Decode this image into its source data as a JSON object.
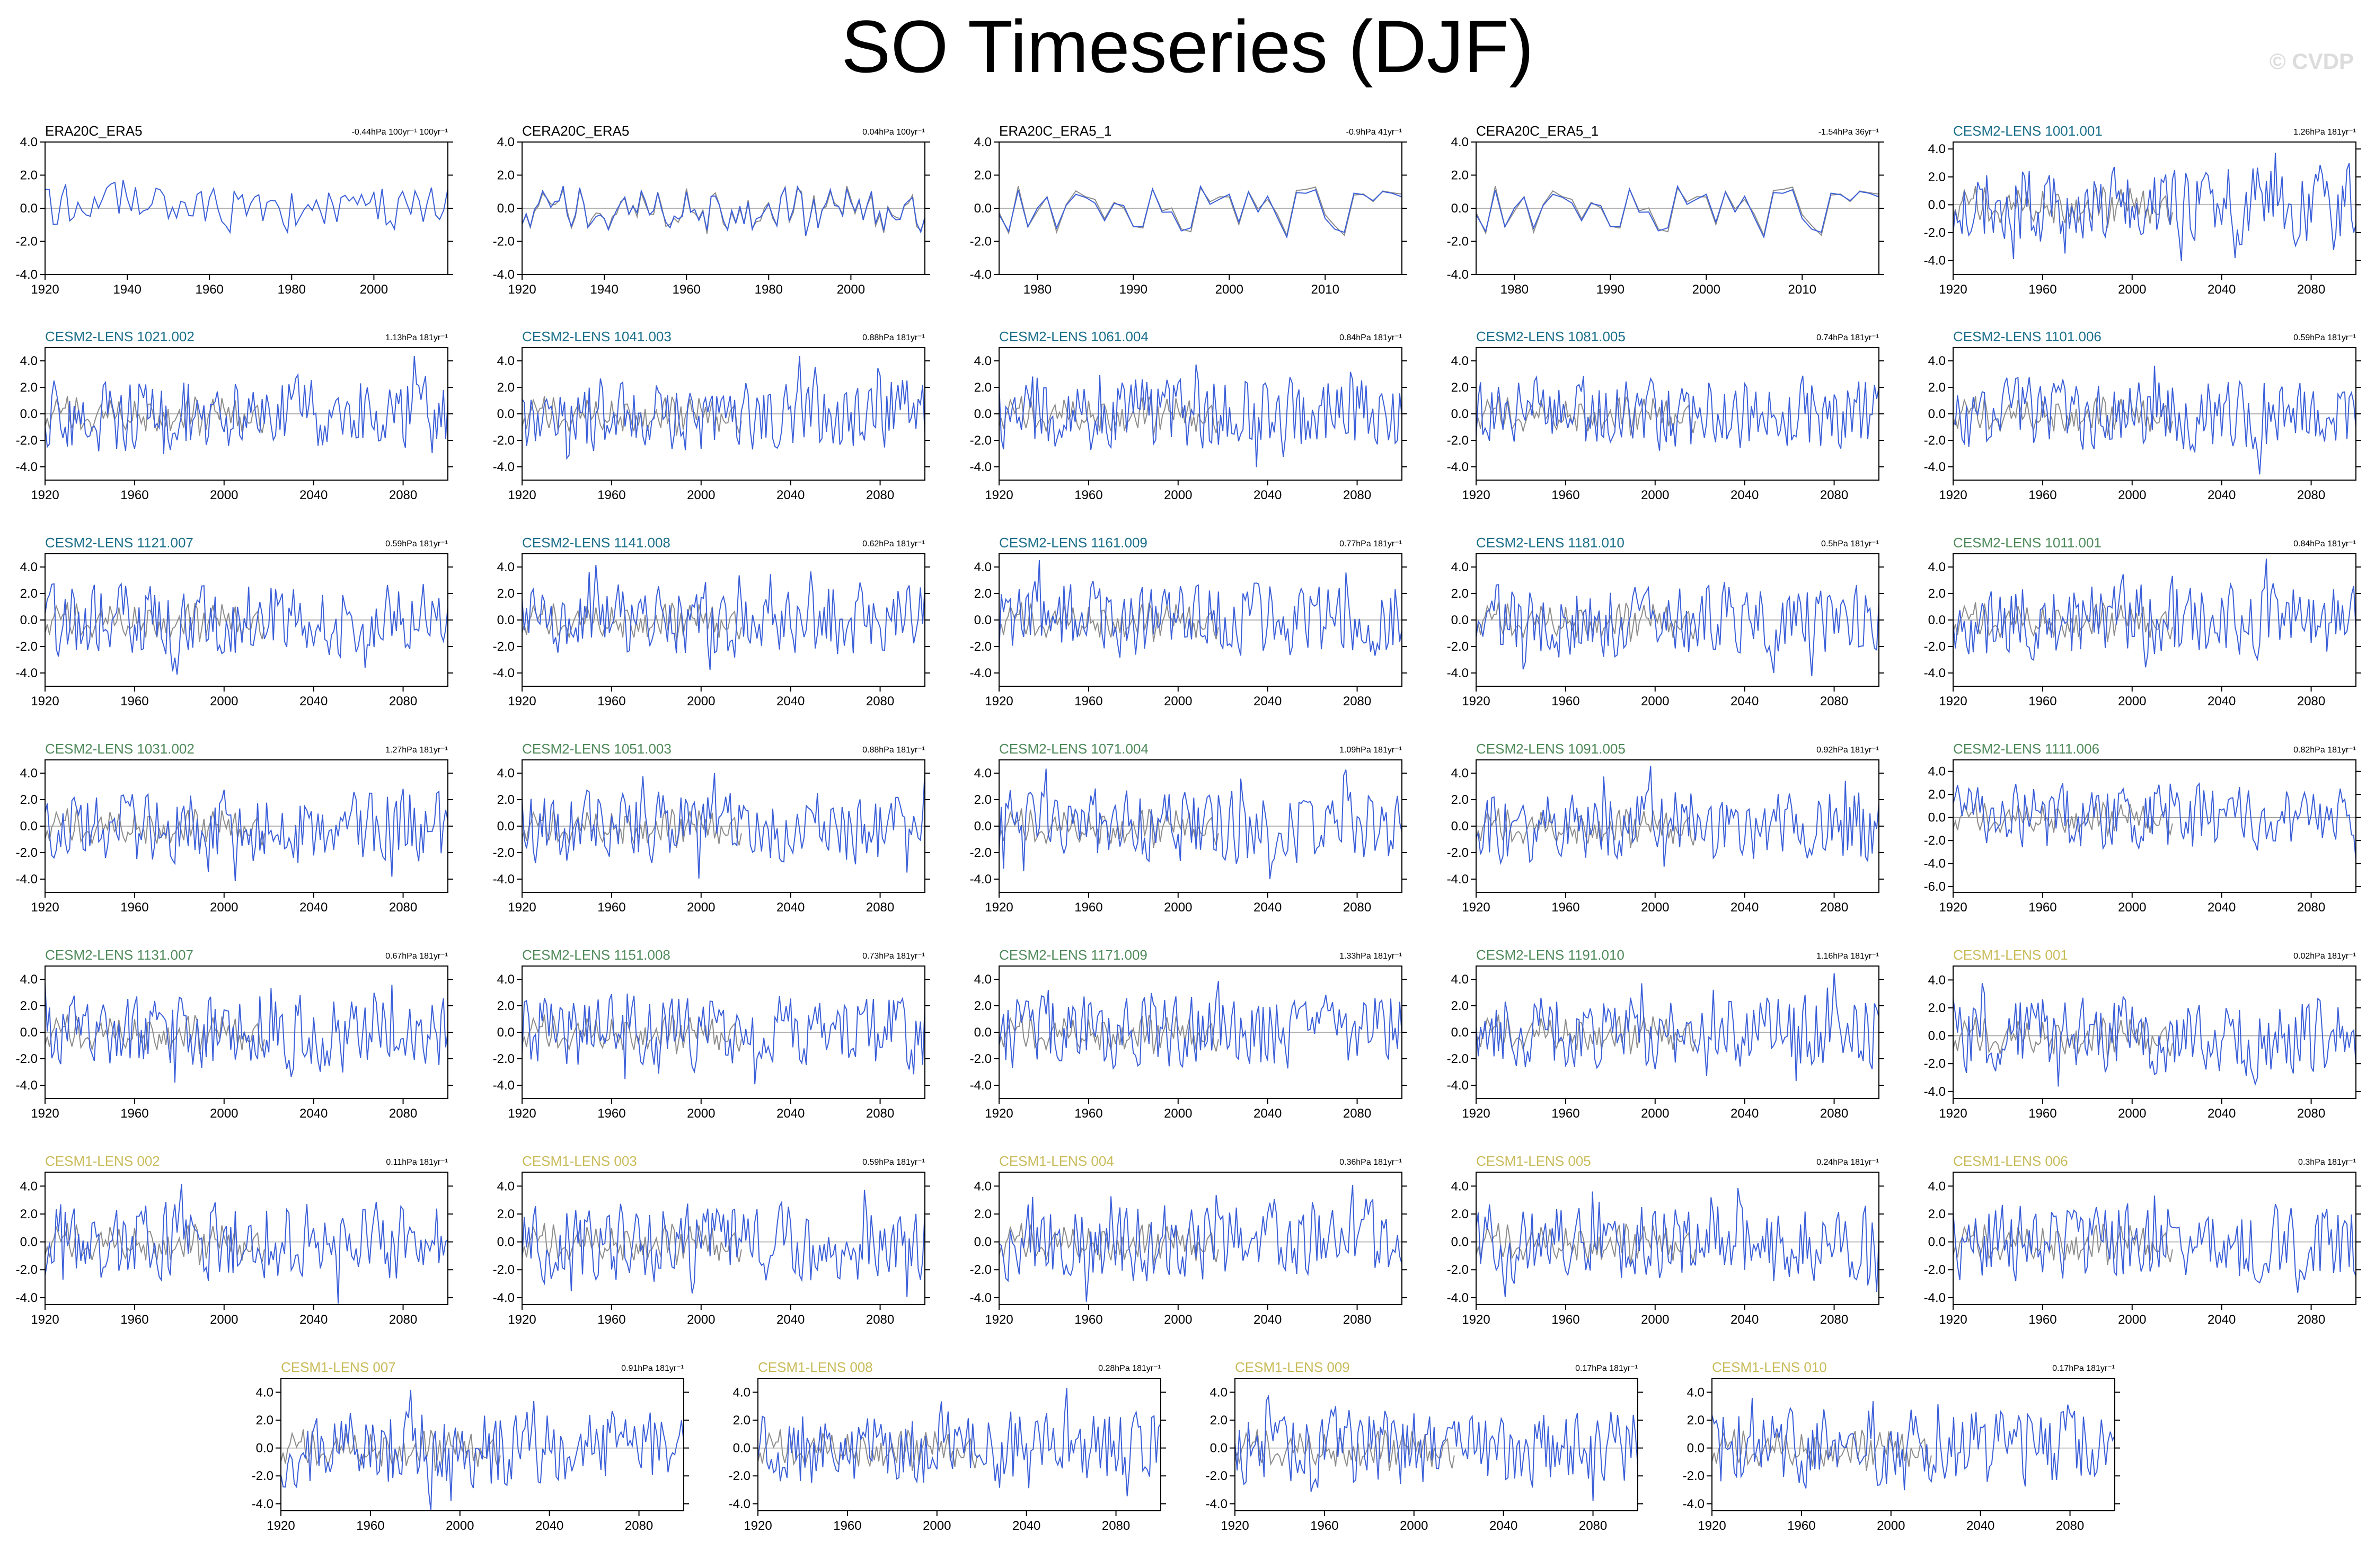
{
  "title": "SO Timeseries (DJF)",
  "watermark": "© CVDP",
  "colors": {
    "obs_line": "#8c8c8c",
    "model_line": "#3b5fd9",
    "zero_line": "#999999",
    "title_obs": "#000000",
    "title_cesm2_blue": "#1a6e8a",
    "title_cesm2_green": "#4f8a5a",
    "title_cesm1": "#c9bb5a"
  },
  "chart_data": [
    {
      "type": "line",
      "name": "ERA20C_ERA5",
      "trend": "-0.44hPa 100yr⁻¹ 100yr⁻¹",
      "title_color": "#000000",
      "x_range": [
        1920,
        2018
      ],
      "ylim": [
        -4,
        4
      ],
      "yticks": [
        "4.0",
        "2.0",
        "0.0",
        "-2.0",
        "-4.0"
      ],
      "xticks": [
        "1920",
        "1940",
        "1960",
        "1980",
        "2000"
      ],
      "obs_overlay": false,
      "seed": 11
    },
    {
      "type": "line",
      "name": "CERA20C_ERA5",
      "trend": "0.04hPa 100yr⁻¹",
      "title_color": "#000000",
      "x_range": [
        1920,
        2018
      ],
      "ylim": [
        -4,
        4
      ],
      "yticks": [
        "4.0",
        "2.0",
        "0.0",
        "-2.0",
        "-4.0"
      ],
      "xticks": [
        "1920",
        "1940",
        "1960",
        "1980",
        "2000"
      ],
      "obs_overlay": true,
      "seed": 12
    },
    {
      "type": "line",
      "name": "ERA20C_ERA5_1",
      "trend": "-0.9hPa 41yr⁻¹",
      "title_color": "#000000",
      "x_range": [
        1976,
        2018
      ],
      "ylim": [
        -4,
        4
      ],
      "yticks": [
        "4.0",
        "2.0",
        "0.0",
        "-2.0",
        "-4.0"
      ],
      "xticks": [
        "1980",
        "1990",
        "2000",
        "2010"
      ],
      "obs_overlay": true,
      "seed": 13
    },
    {
      "type": "line",
      "name": "CERA20C_ERA5_1",
      "trend": "-1.54hPa 36yr⁻¹",
      "title_color": "#000000",
      "x_range": [
        1976,
        2018
      ],
      "ylim": [
        -4,
        4
      ],
      "yticks": [
        "4.0",
        "2.0",
        "0.0",
        "-2.0",
        "-4.0"
      ],
      "xticks": [
        "1980",
        "1990",
        "2000",
        "2010"
      ],
      "obs_overlay": true,
      "seed": 13
    },
    {
      "type": "line",
      "name": "CESM2-LENS 1001.001",
      "trend": "1.26hPa 181yr⁻¹",
      "title_color": "#1a6e8a",
      "x_range": [
        1920,
        2100
      ],
      "ylim": [
        -5,
        4.5
      ],
      "yticks": [
        "4.0",
        "2.0",
        "0.0",
        "-2.0",
        "-4.0"
      ],
      "xticks": [
        "1920",
        "1960",
        "2000",
        "2040",
        "2080"
      ],
      "obs_overlay": true,
      "seed": 21
    },
    {
      "type": "line",
      "name": "CESM2-LENS 1021.002",
      "trend": "1.13hPa 181yr⁻¹",
      "title_color": "#1a6e8a",
      "x_range": [
        1920,
        2100
      ],
      "ylim": [
        -5,
        5
      ],
      "yticks": [
        "4.0",
        "2.0",
        "0.0",
        "-2.0",
        "-4.0"
      ],
      "xticks": [
        "1920",
        "1960",
        "2000",
        "2040",
        "2080"
      ],
      "obs_overlay": true,
      "seed": 22
    },
    {
      "type": "line",
      "name": "CESM2-LENS 1041.003",
      "trend": "0.88hPa 181yr⁻¹",
      "title_color": "#1a6e8a",
      "x_range": [
        1920,
        2100
      ],
      "ylim": [
        -5,
        5
      ],
      "yticks": [
        "4.0",
        "2.0",
        "0.0",
        "-2.0",
        "-4.0"
      ],
      "xticks": [
        "1920",
        "1960",
        "2000",
        "2040",
        "2080"
      ],
      "obs_overlay": true,
      "seed": 23
    },
    {
      "type": "line",
      "name": "CESM2-LENS 1061.004",
      "trend": "0.84hPa 181yr⁻¹",
      "title_color": "#1a6e8a",
      "x_range": [
        1920,
        2100
      ],
      "ylim": [
        -5,
        5
      ],
      "yticks": [
        "4.0",
        "2.0",
        "0.0",
        "-2.0",
        "-4.0"
      ],
      "xticks": [
        "1920",
        "1960",
        "2000",
        "2040",
        "2080"
      ],
      "obs_overlay": true,
      "seed": 24
    },
    {
      "type": "line",
      "name": "CESM2-LENS 1081.005",
      "trend": "0.74hPa 181yr⁻¹",
      "title_color": "#1a6e8a",
      "x_range": [
        1920,
        2100
      ],
      "ylim": [
        -5,
        5
      ],
      "yticks": [
        "4.0",
        "2.0",
        "0.0",
        "-2.0",
        "-4.0"
      ],
      "xticks": [
        "1920",
        "1960",
        "2000",
        "2040",
        "2080"
      ],
      "obs_overlay": true,
      "seed": 25
    },
    {
      "type": "line",
      "name": "CESM2-LENS 1101.006",
      "trend": "0.59hPa 181yr⁻¹",
      "title_color": "#1a6e8a",
      "x_range": [
        1920,
        2100
      ],
      "ylim": [
        -5,
        5
      ],
      "yticks": [
        "4.0",
        "2.0",
        "0.0",
        "-2.0",
        "-4.0"
      ],
      "xticks": [
        "1920",
        "1960",
        "2000",
        "2040",
        "2080"
      ],
      "obs_overlay": true,
      "seed": 26
    },
    {
      "type": "line",
      "name": "CESM2-LENS 1121.007",
      "trend": "0.59hPa 181yr⁻¹",
      "title_color": "#1a6e8a",
      "x_range": [
        1920,
        2100
      ],
      "ylim": [
        -5,
        5
      ],
      "yticks": [
        "4.0",
        "2.0",
        "0.0",
        "-2.0",
        "-4.0"
      ],
      "xticks": [
        "1920",
        "1960",
        "2000",
        "2040",
        "2080"
      ],
      "obs_overlay": true,
      "seed": 27
    },
    {
      "type": "line",
      "name": "CESM2-LENS 1141.008",
      "trend": "0.62hPa 181yr⁻¹",
      "title_color": "#1a6e8a",
      "x_range": [
        1920,
        2100
      ],
      "ylim": [
        -5,
        5
      ],
      "yticks": [
        "4.0",
        "2.0",
        "0.0",
        "-2.0",
        "-4.0"
      ],
      "xticks": [
        "1920",
        "1960",
        "2000",
        "2040",
        "2080"
      ],
      "obs_overlay": true,
      "seed": 28
    },
    {
      "type": "line",
      "name": "CESM2-LENS 1161.009",
      "trend": "0.77hPa 181yr⁻¹",
      "title_color": "#1a6e8a",
      "x_range": [
        1920,
        2100
      ],
      "ylim": [
        -5,
        5
      ],
      "yticks": [
        "4.0",
        "2.0",
        "0.0",
        "-2.0",
        "-4.0"
      ],
      "xticks": [
        "1920",
        "1960",
        "2000",
        "2040",
        "2080"
      ],
      "obs_overlay": true,
      "seed": 29
    },
    {
      "type": "line",
      "name": "CESM2-LENS 1181.010",
      "trend": "0.5hPa 181yr⁻¹",
      "title_color": "#1a6e8a",
      "x_range": [
        1920,
        2100
      ],
      "ylim": [
        -5,
        5
      ],
      "yticks": [
        "4.0",
        "2.0",
        "0.0",
        "-2.0",
        "-4.0"
      ],
      "xticks": [
        "1920",
        "1960",
        "2000",
        "2040",
        "2080"
      ],
      "obs_overlay": true,
      "seed": 30
    },
    {
      "type": "line",
      "name": "CESM2-LENS 1011.001",
      "trend": "0.84hPa 181yr⁻¹",
      "title_color": "#4f8a5a",
      "x_range": [
        1920,
        2100
      ],
      "ylim": [
        -5,
        5
      ],
      "yticks": [
        "4.0",
        "2.0",
        "0.0",
        "-2.0",
        "-4.0"
      ],
      "xticks": [
        "1920",
        "1960",
        "2000",
        "2040",
        "2080"
      ],
      "obs_overlay": true,
      "seed": 31
    },
    {
      "type": "line",
      "name": "CESM2-LENS 1031.002",
      "trend": "1.27hPa 181yr⁻¹",
      "title_color": "#4f8a5a",
      "x_range": [
        1920,
        2100
      ],
      "ylim": [
        -5,
        5
      ],
      "yticks": [
        "4.0",
        "2.0",
        "0.0",
        "-2.0",
        "-4.0"
      ],
      "xticks": [
        "1920",
        "1960",
        "2000",
        "2040",
        "2080"
      ],
      "obs_overlay": true,
      "seed": 32
    },
    {
      "type": "line",
      "name": "CESM2-LENS 1051.003",
      "trend": "0.88hPa 181yr⁻¹",
      "title_color": "#4f8a5a",
      "x_range": [
        1920,
        2100
      ],
      "ylim": [
        -5,
        5
      ],
      "yticks": [
        "4.0",
        "2.0",
        "0.0",
        "-2.0",
        "-4.0"
      ],
      "xticks": [
        "1920",
        "1960",
        "2000",
        "2040",
        "2080"
      ],
      "obs_overlay": true,
      "seed": 33
    },
    {
      "type": "line",
      "name": "CESM2-LENS 1071.004",
      "trend": "1.09hPa 181yr⁻¹",
      "title_color": "#4f8a5a",
      "x_range": [
        1920,
        2100
      ],
      "ylim": [
        -5,
        5
      ],
      "yticks": [
        "4.0",
        "2.0",
        "0.0",
        "-2.0",
        "-4.0"
      ],
      "xticks": [
        "1920",
        "1960",
        "2000",
        "2040",
        "2080"
      ],
      "obs_overlay": true,
      "seed": 34
    },
    {
      "type": "line",
      "name": "CESM2-LENS 1091.005",
      "trend": "0.92hPa 181yr⁻¹",
      "title_color": "#4f8a5a",
      "x_range": [
        1920,
        2100
      ],
      "ylim": [
        -5,
        5
      ],
      "yticks": [
        "4.0",
        "2.0",
        "0.0",
        "-2.0",
        "-4.0"
      ],
      "xticks": [
        "1920",
        "1960",
        "2000",
        "2040",
        "2080"
      ],
      "obs_overlay": true,
      "seed": 35
    },
    {
      "type": "line",
      "name": "CESM2-LENS 1111.006",
      "trend": "0.82hPa 181yr⁻¹",
      "title_color": "#4f8a5a",
      "x_range": [
        1920,
        2100
      ],
      "ylim": [
        -6.5,
        5
      ],
      "yticks": [
        "4.0",
        "2.0",
        "0.0",
        "-2.0",
        "-4.0",
        "-6.0"
      ],
      "xticks": [
        "1920",
        "1960",
        "2000",
        "2040",
        "2080"
      ],
      "obs_overlay": true,
      "seed": 36
    },
    {
      "type": "line",
      "name": "CESM2-LENS 1131.007",
      "trend": "0.67hPa 181yr⁻¹",
      "title_color": "#4f8a5a",
      "x_range": [
        1920,
        2100
      ],
      "ylim": [
        -5,
        5
      ],
      "yticks": [
        "4.0",
        "2.0",
        "0.0",
        "-2.0",
        "-4.0"
      ],
      "xticks": [
        "1920",
        "1960",
        "2000",
        "2040",
        "2080"
      ],
      "obs_overlay": true,
      "seed": 37
    },
    {
      "type": "line",
      "name": "CESM2-LENS 1151.008",
      "trend": "0.73hPa 181yr⁻¹",
      "title_color": "#4f8a5a",
      "x_range": [
        1920,
        2100
      ],
      "ylim": [
        -5,
        5
      ],
      "yticks": [
        "4.0",
        "2.0",
        "0.0",
        "-2.0",
        "-4.0"
      ],
      "xticks": [
        "1920",
        "1960",
        "2000",
        "2040",
        "2080"
      ],
      "obs_overlay": true,
      "seed": 38
    },
    {
      "type": "line",
      "name": "CESM2-LENS 1171.009",
      "trend": "1.33hPa 181yr⁻¹",
      "title_color": "#4f8a5a",
      "x_range": [
        1920,
        2100
      ],
      "ylim": [
        -5,
        5
      ],
      "yticks": [
        "4.0",
        "2.0",
        "0.0",
        "-2.0",
        "-4.0"
      ],
      "xticks": [
        "1920",
        "1960",
        "2000",
        "2040",
        "2080"
      ],
      "obs_overlay": true,
      "seed": 39
    },
    {
      "type": "line",
      "name": "CESM2-LENS 1191.010",
      "trend": "1.16hPa 181yr⁻¹",
      "title_color": "#4f8a5a",
      "x_range": [
        1920,
        2100
      ],
      "ylim": [
        -5,
        5
      ],
      "yticks": [
        "4.0",
        "2.0",
        "0.0",
        "-2.0",
        "-4.0"
      ],
      "xticks": [
        "1920",
        "1960",
        "2000",
        "2040",
        "2080"
      ],
      "obs_overlay": true,
      "seed": 40
    },
    {
      "type": "line",
      "name": "CESM1-LENS 001",
      "trend": "0.02hPa 181yr⁻¹",
      "title_color": "#c9bb5a",
      "x_range": [
        1920,
        2100
      ],
      "ylim": [
        -4.5,
        5
      ],
      "yticks": [
        "4.0",
        "2.0",
        "0.0",
        "-2.0",
        "-4.0"
      ],
      "xticks": [
        "1920",
        "1960",
        "2000",
        "2040",
        "2080"
      ],
      "obs_overlay": true,
      "seed": 41
    },
    {
      "type": "line",
      "name": "CESM1-LENS 002",
      "trend": "0.11hPa 181yr⁻¹",
      "title_color": "#c9bb5a",
      "x_range": [
        1920,
        2100
      ],
      "ylim": [
        -4.5,
        5
      ],
      "yticks": [
        "4.0",
        "2.0",
        "0.0",
        "-2.0",
        "-4.0"
      ],
      "xticks": [
        "1920",
        "1960",
        "2000",
        "2040",
        "2080"
      ],
      "obs_overlay": true,
      "seed": 42
    },
    {
      "type": "line",
      "name": "CESM1-LENS 003",
      "trend": "0.59hPa 181yr⁻¹",
      "title_color": "#c9bb5a",
      "x_range": [
        1920,
        2100
      ],
      "ylim": [
        -4.5,
        5
      ],
      "yticks": [
        "4.0",
        "2.0",
        "0.0",
        "-2.0",
        "-4.0"
      ],
      "xticks": [
        "1920",
        "1960",
        "2000",
        "2040",
        "2080"
      ],
      "obs_overlay": true,
      "seed": 43
    },
    {
      "type": "line",
      "name": "CESM1-LENS 004",
      "trend": "0.36hPa 181yr⁻¹",
      "title_color": "#c9bb5a",
      "x_range": [
        1920,
        2100
      ],
      "ylim": [
        -4.5,
        5
      ],
      "yticks": [
        "4.0",
        "2.0",
        "0.0",
        "-2.0",
        "-4.0"
      ],
      "xticks": [
        "1920",
        "1960",
        "2000",
        "2040",
        "2080"
      ],
      "obs_overlay": true,
      "seed": 44
    },
    {
      "type": "line",
      "name": "CESM1-LENS 005",
      "trend": "0.24hPa 181yr⁻¹",
      "title_color": "#c9bb5a",
      "x_range": [
        1920,
        2100
      ],
      "ylim": [
        -4.5,
        5
      ],
      "yticks": [
        "4.0",
        "2.0",
        "0.0",
        "-2.0",
        "-4.0"
      ],
      "xticks": [
        "1920",
        "1960",
        "2000",
        "2040",
        "2080"
      ],
      "obs_overlay": true,
      "seed": 45
    },
    {
      "type": "line",
      "name": "CESM1-LENS 006",
      "trend": "0.3hPa 181yr⁻¹",
      "title_color": "#c9bb5a",
      "x_range": [
        1920,
        2100
      ],
      "ylim": [
        -4.5,
        5
      ],
      "yticks": [
        "4.0",
        "2.0",
        "0.0",
        "-2.0",
        "-4.0"
      ],
      "xticks": [
        "1920",
        "1960",
        "2000",
        "2040",
        "2080"
      ],
      "obs_overlay": true,
      "seed": 46
    },
    {
      "type": "line",
      "name": "CESM1-LENS 007",
      "trend": "0.91hPa 181yr⁻¹",
      "title_color": "#c9bb5a",
      "x_range": [
        1920,
        2100
      ],
      "ylim": [
        -4.5,
        5
      ],
      "yticks": [
        "4.0",
        "2.0",
        "0.0",
        "-2.0",
        "-4.0"
      ],
      "xticks": [
        "1920",
        "1960",
        "2000",
        "2040",
        "2080"
      ],
      "obs_overlay": true,
      "seed": 47
    },
    {
      "type": "line",
      "name": "CESM1-LENS 008",
      "trend": "0.28hPa 181yr⁻¹",
      "title_color": "#c9bb5a",
      "x_range": [
        1920,
        2100
      ],
      "ylim": [
        -4.5,
        5
      ],
      "yticks": [
        "4.0",
        "2.0",
        "0.0",
        "-2.0",
        "-4.0"
      ],
      "xticks": [
        "1920",
        "1960",
        "2000",
        "2040",
        "2080"
      ],
      "obs_overlay": true,
      "seed": 48
    },
    {
      "type": "line",
      "name": "CESM1-LENS 009",
      "trend": "0.17hPa 181yr⁻¹",
      "title_color": "#c9bb5a",
      "x_range": [
        1920,
        2100
      ],
      "ylim": [
        -4.5,
        5
      ],
      "yticks": [
        "4.0",
        "2.0",
        "0.0",
        "-2.0",
        "-4.0"
      ],
      "xticks": [
        "1920",
        "1960",
        "2000",
        "2040",
        "2080"
      ],
      "obs_overlay": true,
      "seed": 49
    },
    {
      "type": "line",
      "name": "CESM1-LENS 010",
      "trend": "0.17hPa 181yr⁻¹",
      "title_color": "#c9bb5a",
      "x_range": [
        1920,
        2100
      ],
      "ylim": [
        -4.5,
        5
      ],
      "yticks": [
        "4.0",
        "2.0",
        "0.0",
        "-2.0",
        "-4.0"
      ],
      "xticks": [
        "1920",
        "1960",
        "2000",
        "2040",
        "2080"
      ],
      "obs_overlay": true,
      "seed": 50
    }
  ]
}
